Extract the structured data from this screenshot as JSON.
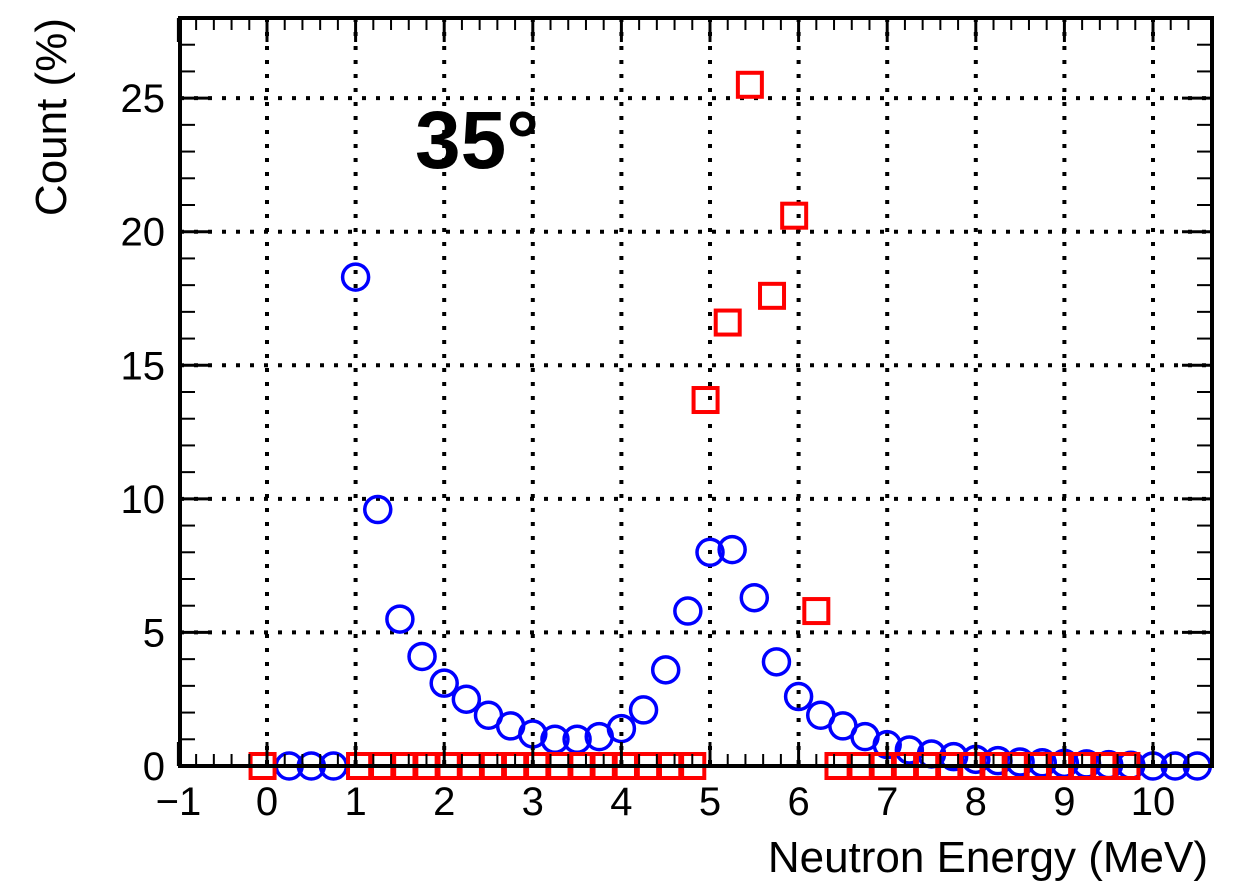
{
  "chart_data": {
    "type": "scatter",
    "title": "",
    "annotation": "35°",
    "xlabel": "Neutron Energy (MeV)",
    "ylabel": "Count (%)",
    "xlim": [
      -1,
      10.5
    ],
    "ylim": [
      0,
      28
    ],
    "grid": true,
    "x_ticks": [
      -1,
      0,
      1,
      2,
      3,
      4,
      5,
      6,
      7,
      8,
      9,
      10
    ],
    "x_tick_labels": [
      "−1",
      "0",
      "1",
      "2",
      "3",
      "4",
      "5",
      "6",
      "7",
      "8",
      "9",
      "10"
    ],
    "y_ticks": [
      0,
      5,
      10,
      15,
      20,
      25
    ],
    "y_tick_labels": [
      "0",
      "5",
      "10",
      "15",
      "20",
      "25"
    ],
    "series": [
      {
        "marker": "open-circle",
        "color": "#0000ff",
        "x": [
          0.25,
          0.5,
          0.75,
          1.0,
          1.25,
          1.5,
          1.75,
          2.0,
          2.25,
          2.5,
          2.75,
          3.0,
          3.25,
          3.5,
          3.75,
          4.0,
          4.25,
          4.5,
          4.75,
          5.0,
          5.25,
          5.5,
          5.75,
          6.0,
          6.25,
          6.5,
          6.75,
          7.0,
          7.25,
          7.5,
          7.75,
          8.0,
          8.25,
          8.5,
          8.75,
          9.0,
          9.25,
          9.5,
          9.75,
          10.0,
          10.25,
          10.5
        ],
        "y": [
          0.0,
          0.0,
          0.0,
          18.3,
          9.6,
          5.5,
          4.1,
          3.1,
          2.5,
          1.9,
          1.5,
          1.2,
          1.0,
          1.0,
          1.1,
          1.4,
          2.1,
          3.6,
          5.8,
          8.0,
          8.1,
          6.3,
          3.9,
          2.6,
          1.9,
          1.5,
          1.1,
          0.8,
          0.6,
          0.45,
          0.35,
          0.25,
          0.2,
          0.15,
          0.12,
          0.1,
          0.08,
          0.05,
          0.03,
          0.0,
          0.0,
          0.0
        ]
      },
      {
        "marker": "open-square",
        "color": "#ff0000",
        "x": [
          -0.05,
          1.05,
          1.3,
          1.55,
          1.8,
          2.05,
          2.3,
          2.55,
          2.8,
          3.05,
          3.3,
          3.55,
          3.8,
          4.05,
          4.3,
          4.55,
          4.8,
          4.95,
          5.2,
          5.45,
          5.7,
          5.95,
          6.2,
          6.45,
          6.7,
          6.95,
          7.2,
          7.45,
          7.7,
          7.95,
          8.2,
          8.45,
          8.7,
          8.95,
          9.2,
          9.45,
          9.7
        ],
        "y": [
          0.0,
          0.0,
          0.0,
          0.0,
          0.0,
          0.0,
          0.0,
          0.0,
          0.0,
          0.0,
          0.0,
          0.0,
          0.0,
          0.0,
          0.0,
          0.0,
          0.0,
          13.7,
          16.6,
          25.5,
          17.6,
          20.6,
          5.8,
          0.0,
          0.0,
          0.0,
          0.0,
          0.0,
          0.0,
          0.0,
          0.0,
          0.0,
          0.0,
          0.0,
          0.0,
          0.0,
          0.0
        ]
      }
    ]
  }
}
